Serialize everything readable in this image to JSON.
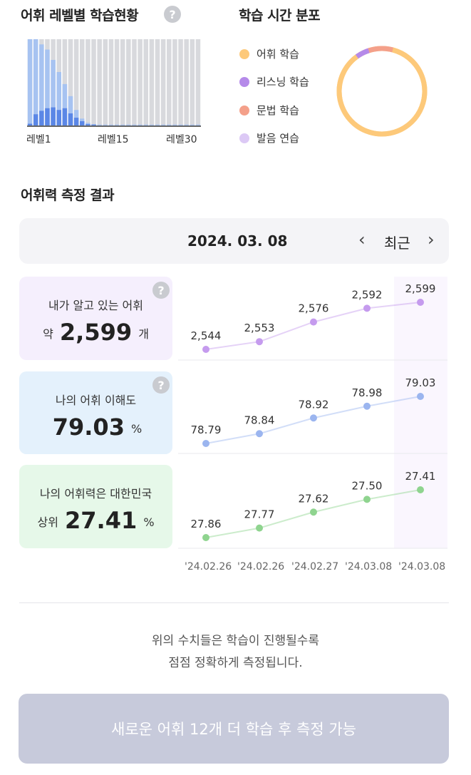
{
  "level_section": {
    "title": "어휘 레벨별 학습현황",
    "help": "?",
    "axis_labels": [
      "레벨1",
      "레벨15",
      "레벨30"
    ]
  },
  "time_section": {
    "title": "학습 시간 분포",
    "legend": [
      {
        "label": "어휘 학습",
        "color": "#fdc97a"
      },
      {
        "label": "리스닝 학습",
        "color": "#b58ae9"
      },
      {
        "label": "문법 학습",
        "color": "#f4a08a"
      },
      {
        "label": "발음 연습",
        "color": "#dcc9f5"
      }
    ],
    "distribution": [
      0.86,
      0.05,
      0.09,
      0.0
    ]
  },
  "measure_section": {
    "title": "어휘력 측정 결과",
    "date": "2024. 03. 08",
    "prev": "‹",
    "recent": "최근",
    "next": "›"
  },
  "cards": {
    "vocab": {
      "label": "내가 알고 있는 어휘",
      "prefix": "약",
      "value": "2,599",
      "unit": "개",
      "help": "?"
    },
    "understanding": {
      "label": "나의 어휘 이해도",
      "value": "79.03",
      "unit": "%",
      "help": "?"
    },
    "rank": {
      "label": "나의 어휘력은 대한민국",
      "prefix": "상위",
      "value": "27.41",
      "unit": "%"
    }
  },
  "chart_data": {
    "type": "line",
    "x": [
      "'24.02.26",
      "'24.02.26",
      "'24.02.27",
      "'24.03.08",
      "'24.03.08"
    ],
    "series": [
      {
        "values": [
          2544,
          2553,
          2576,
          2592,
          2599
        ],
        "labels": [
          "2,544",
          "2,553",
          "2,576",
          "2,592",
          "2,599"
        ],
        "color": "#c59bee"
      },
      {
        "values": [
          78.79,
          78.84,
          78.92,
          78.98,
          79.03
        ],
        "labels": [
          "78.79",
          "78.84",
          "78.92",
          "78.98",
          "79.03"
        ],
        "color": "#9bb5ef"
      },
      {
        "values": [
          27.86,
          27.77,
          27.62,
          27.5,
          27.41
        ],
        "labels": [
          "27.86",
          "27.77",
          "27.62",
          "27.50",
          "27.41"
        ],
        "color": "#8fd48f"
      }
    ]
  },
  "level_chart_data": {
    "type": "bar",
    "categories": 30,
    "total": [
      1.0,
      1.0,
      0.94,
      0.88,
      0.76,
      0.62,
      0.48,
      0.34,
      0.18,
      0.08,
      0.03,
      0.015,
      0.01,
      0.01,
      0.01,
      0.01,
      0.01,
      0.01,
      0.01,
      0.01,
      0.01,
      0.01,
      0.01,
      0.01,
      0.01,
      0.01,
      0.01,
      0.01,
      0.01,
      0.01
    ],
    "learned": [
      0.02,
      0.13,
      0.17,
      0.2,
      0.21,
      0.18,
      0.2,
      0.14,
      0.09,
      0.05,
      0.015,
      0.01,
      0,
      0,
      0,
      0,
      0,
      0,
      0,
      0,
      0,
      0,
      0,
      0,
      0,
      0,
      0,
      0,
      0,
      0
    ],
    "colors": {
      "total": "#a7c3f1",
      "learned": "#5b87e6",
      "empty": "#d8d9dd"
    }
  },
  "footer": {
    "note_line1": "위의 수치들은 학습이 진행될수록",
    "note_line2": "점점 정확하게 측정됩니다.",
    "button": "새로운 어휘 12개 더 학습 후 측정 가능"
  }
}
